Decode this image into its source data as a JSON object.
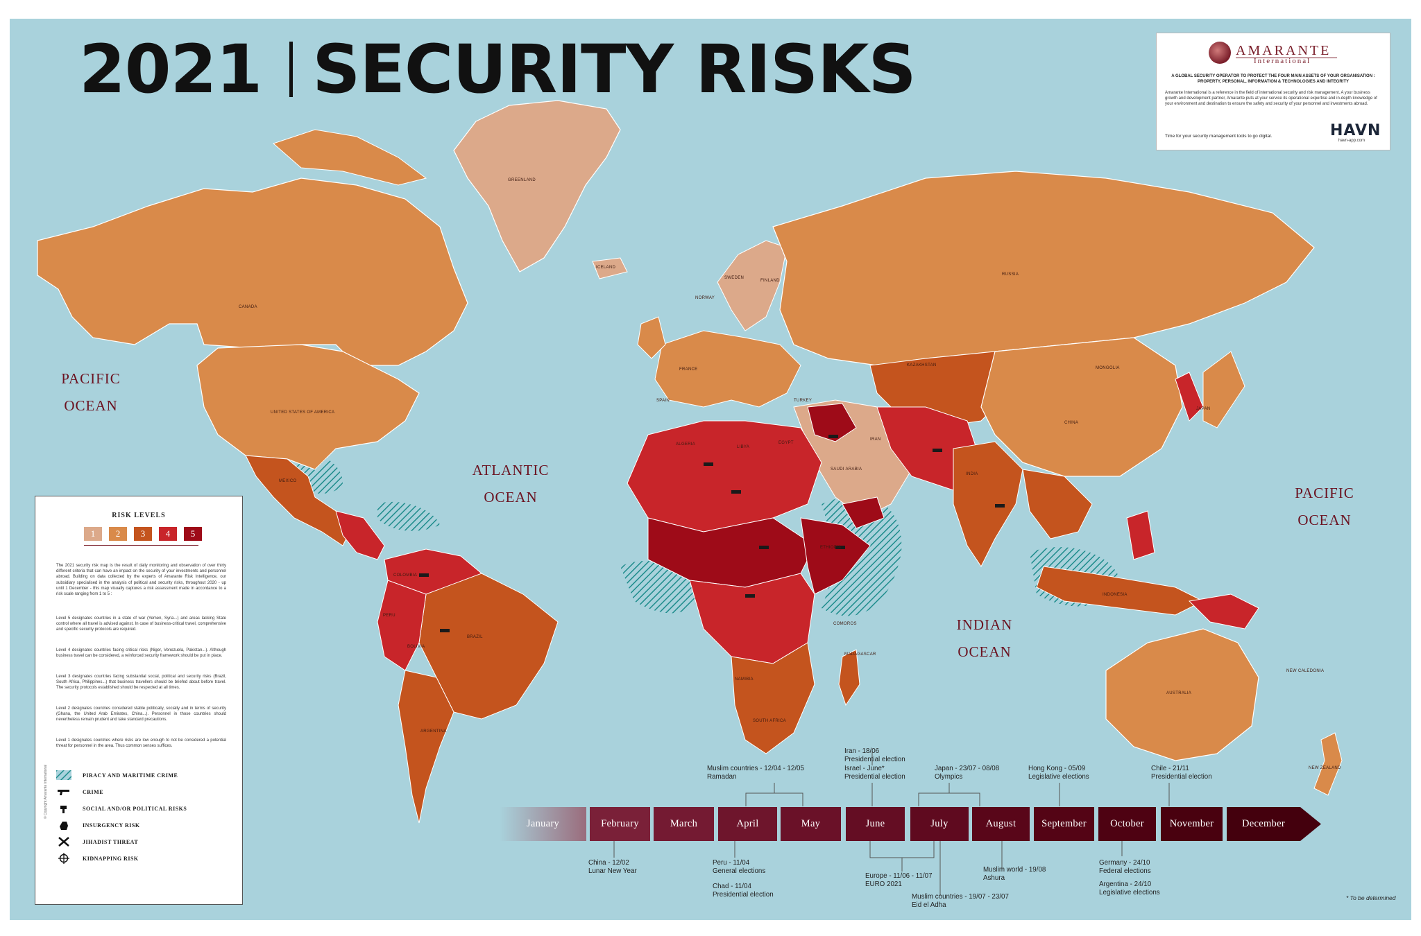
{
  "title": {
    "year": "2021",
    "main": "SECURITY RISKS"
  },
  "oceans": {
    "pacific_left": {
      "line1": "PACIFIC",
      "line2": "OCEAN"
    },
    "atlantic": {
      "line1": "ATLANTIC",
      "line2": "OCEAN"
    },
    "indian": {
      "line1": "INDIAN",
      "line2": "OCEAN"
    },
    "pacific_right": {
      "line1": "PACIFIC",
      "line2": "OCEAN"
    }
  },
  "country_labels": {
    "greenland": "GREENLAND",
    "iceland": "ICELAND",
    "canada": "CANADA",
    "usa": "UNITED STATES OF AMERICA",
    "mexico": "MEXICO",
    "brazil": "BRAZIL",
    "argentina": "ARGENTINA",
    "russia": "RUSSIA",
    "china": "CHINA",
    "mongolia": "MONGOLIA",
    "kazakhstan": "KAZAKHSTAN",
    "india": "INDIA",
    "australia": "AUSTRALIA",
    "new_zealand": "NEW ZEALAND",
    "new_caledonia": "NEW CALEDONIA",
    "saudi_arabia": "SAUDI ARABIA",
    "madagascar": "MADAGASCAR",
    "sweden": "SWEDEN",
    "finland": "FINLAND",
    "norway": "NORWAY",
    "algeria": "ALGERIA",
    "libya": "LIBYA",
    "egypt": "EGYPT",
    "japan": "JAPAN",
    "indonesia": "INDONESIA",
    "peru": "PERU",
    "bolivia": "BOLIVIA",
    "colombia": "COLOMBIA",
    "spain": "SPAIN",
    "france": "FRANCE",
    "turkey": "TURKEY",
    "iran": "IRAN",
    "namibia": "NAMIBIA",
    "south_africa": "SOUTH AFRICA",
    "ethiopia": "ETHIOPIA",
    "comoros": "COMOROS"
  },
  "company": {
    "name": "AMARANTE",
    "subtitle": "International",
    "tagline": "A GLOBAL SECURITY OPERATOR TO PROTECT THE FOUR MAIN ASSETS OF YOUR ORGANISATION : PROPERTY, PERSONAL, INFORMATION & TECHNOLOGIES AND INTEGRITY",
    "description": "Amarante International is a reference in the field of international security and risk management. A your business growth and development partner, Amarante puts at your service its operational expertise and in-depth knowledge of your environment and destination to ensure the safety and security of your personnel and investments abroad.",
    "cta": "Time for your security management tools to go digital.",
    "app_logo": "HAVN",
    "app_url": "havn-app.com"
  },
  "legend": {
    "title": "RISK LEVELS",
    "levels": [
      {
        "label": "1",
        "color": "#dca98a",
        "text_color": "#ffffff"
      },
      {
        "label": "2",
        "color": "#d98a4a",
        "text_color": "#ffffff"
      },
      {
        "label": "3",
        "color": "#c4541e",
        "text_color": "#ffffff"
      },
      {
        "label": "4",
        "color": "#c8252a",
        "text_color": "#ffffff"
      },
      {
        "label": "5",
        "color": "#9e0b18",
        "text_color": "#ffffff"
      }
    ],
    "intro": "The 2021 security risk map is the result of daily monitoring and observation of over thirty different criteria that can have an impact on the security of your investments and personnel abroad. Building on data collected by the experts of Amarante Risk Intelligence, our subsidiary specialised in the analysis of political and security risks, throughout 2020 - up until 1 December - this map visually captures a risk assessment made in accordance to a risk scale ranging from 1 to 5 :",
    "level5": "Level 5 designates countries in a state of war (Yemen, Syria...) and areas lacking State control where all travel is advised against. In case of business-critical travel, comprehensive and specific security protocols are required.",
    "level4": "Level 4 designates countries facing critical risks (Niger, Venezuela, Pakistan...). Although business travel can be considered, a reinforced security framework should be put in place.",
    "level3": "Level 3 designates countries facing substantial social, political and security risks (Brazil, South Africa, Philippines...) that business travellers should be briefed about before travel. The security protocols established should be respected at all times.",
    "level2": "Level 2 designates countries considered stable politically, socially and in terms of security (Ghana, the United Arab Emirates, China...). Personnel in those countries should nevertheless remain prudent and take standard precautions.",
    "level1": "Level 1 designates countries where risks are low enough to not be considered a potential threat for personnel in the area. Thus common senses suffices.",
    "icons": [
      {
        "label": "PIRACY AND MARITIME CRIME",
        "icon": "hatch-icon"
      },
      {
        "label": "CRIME",
        "icon": "gun-icon"
      },
      {
        "label": "SOCIAL AND/OR POLITICAL RISKS",
        "icon": "fist-icon"
      },
      {
        "label": "INSURGENCY RISK",
        "icon": "hand-grenade-icon"
      },
      {
        "label": "JIHADIST THREAT",
        "icon": "crossed-rifles-icon"
      },
      {
        "label": "KIDNAPPING RISK",
        "icon": "crosshair-icon"
      }
    ],
    "copyright": "© Copyright Amarante International"
  },
  "timeline": {
    "months": [
      "January",
      "February",
      "March",
      "April",
      "May",
      "June",
      "July",
      "August",
      "September",
      "October",
      "November",
      "December"
    ],
    "colors": [
      "#9a6c7c",
      "#7a2038",
      "#741a32",
      "#6e152c",
      "#6a1128",
      "#640d23",
      "#5f0a1f",
      "#590619",
      "#540415",
      "#4e0212",
      "#49010f",
      "#44000d"
    ],
    "events_top": [
      {
        "id": "iran",
        "line1": "Iran - 18/06",
        "line2": "Presidential election"
      },
      {
        "id": "israel",
        "line1": "Israel - June*",
        "line2": "Presidential election"
      },
      {
        "id": "muslim_ramadan",
        "line1": "Muslim countries - 12/04 - 12/05",
        "line2": "Ramadan"
      },
      {
        "id": "japan",
        "line1": "Japan - 23/07 - 08/08",
        "line2": "Olympics"
      },
      {
        "id": "hongkong",
        "line1": "Hong Kong - 05/09",
        "line2": "Legislative elections"
      },
      {
        "id": "chile",
        "line1": "Chile - 21/11",
        "line2": "Presidential election"
      }
    ],
    "events_bottom": [
      {
        "id": "china",
        "line1": "China - 12/02",
        "line2": "Lunar New Year"
      },
      {
        "id": "peru",
        "line1": "Peru - 11/04",
        "line2": "General elections"
      },
      {
        "id": "chad",
        "line1": "Chad - 11/04",
        "line2": "Presidential election"
      },
      {
        "id": "europe",
        "line1": "Europe - 11/06 - 11/07",
        "line2": "EURO 2021"
      },
      {
        "id": "muslim_world",
        "line1": "Muslim world - 19/08",
        "line2": "Ashura"
      },
      {
        "id": "muslim_eid",
        "line1": "Muslim countries - 19/07 - 23/07",
        "line2": "Eid el Adha"
      },
      {
        "id": "germany",
        "line1": "Germany - 24/10",
        "line2": "Federal elections"
      },
      {
        "id": "argentina",
        "line1": "Argentina - 24/10",
        "line2": "Legislative elections"
      }
    ],
    "footnote": "* To be determined"
  }
}
